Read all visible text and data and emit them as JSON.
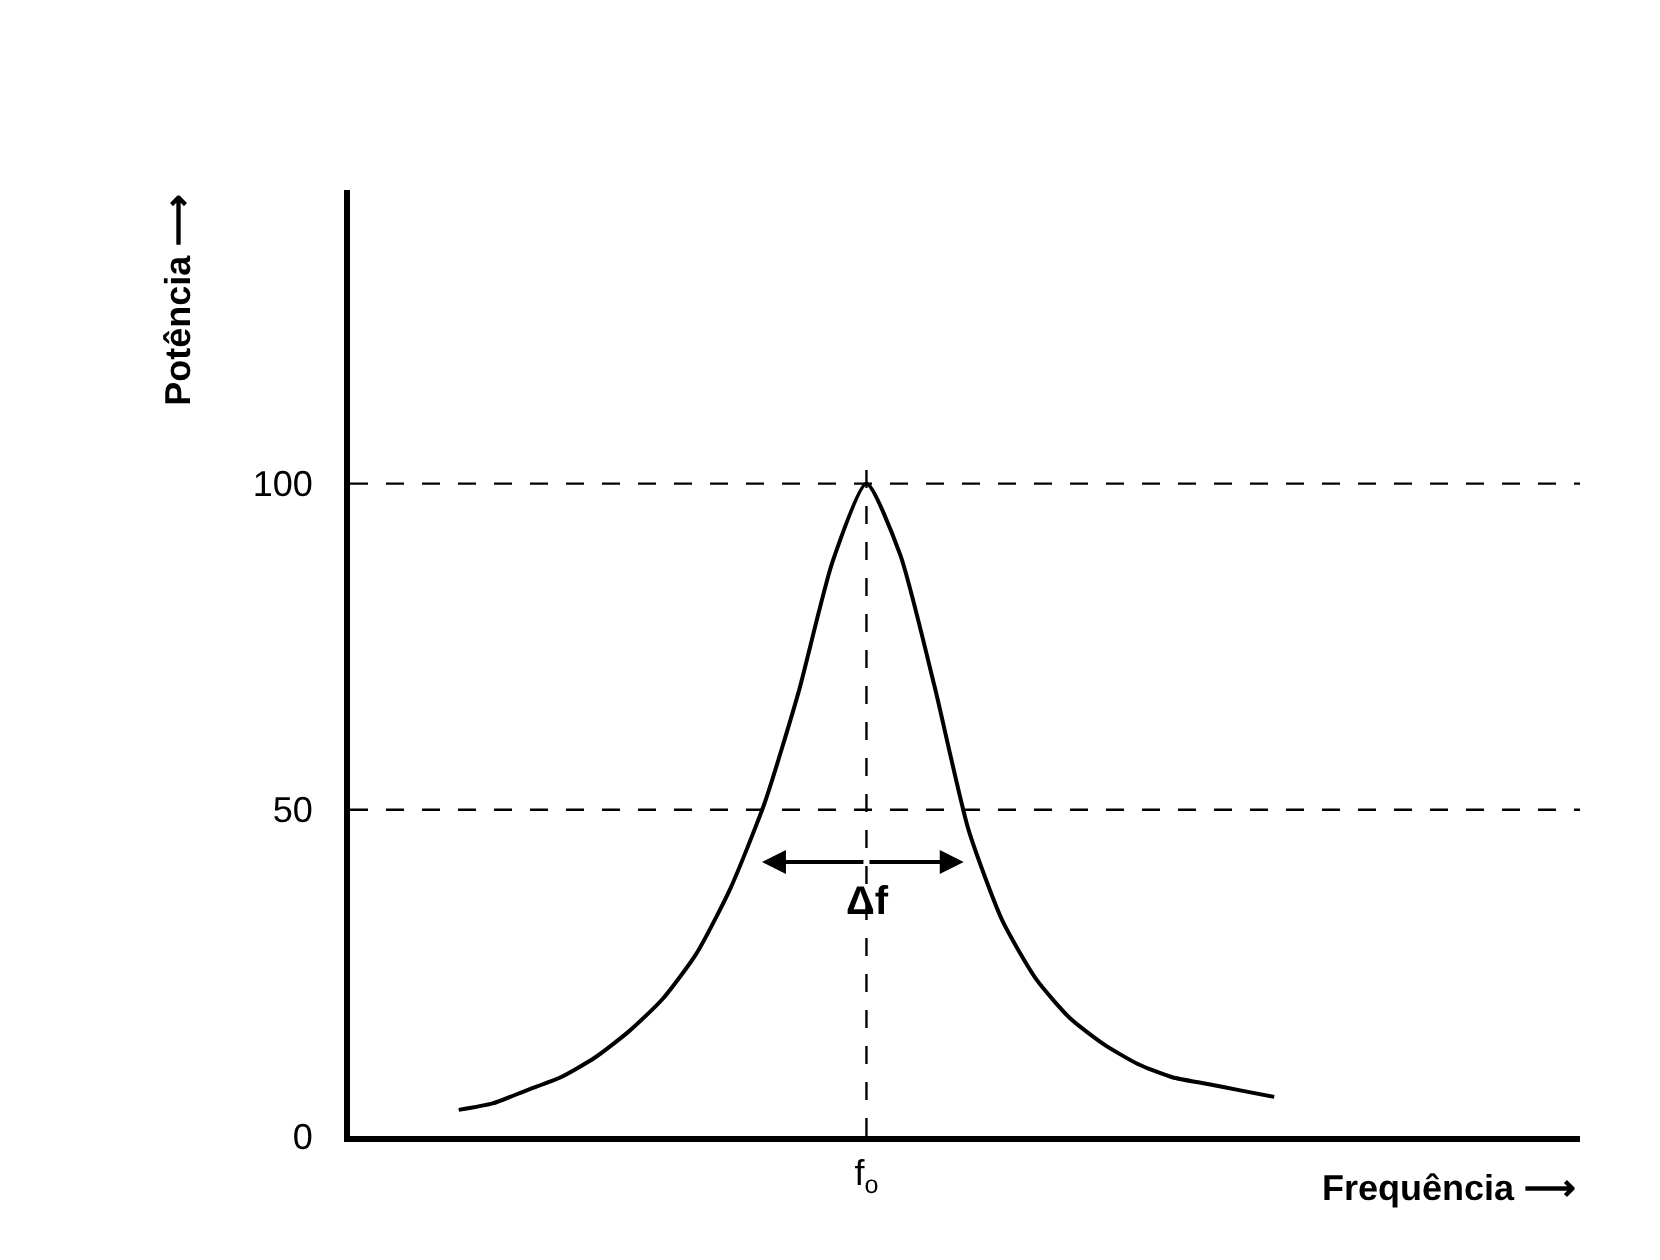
{
  "chart_data": {
    "type": "line",
    "xlabel": "Frequência ⟶",
    "ylabel": "Potência ⟶",
    "categories": [
      null,
      null,
      null,
      null,
      null,
      null,
      null,
      null,
      null,
      null,
      null,
      null,
      "f$_{o}$",
      null,
      null,
      null,
      null,
      null,
      null,
      null,
      null,
      null,
      null,
      null,
      null
    ],
    "series": [
      {
        "color": "#000000",
        "values": [
          4,
          5,
          7,
          9,
          12,
          16,
          21,
          28,
          38,
          51,
          68,
          88,
          100,
          89,
          69,
          47,
          33,
          24,
          18,
          14,
          11,
          9,
          8,
          7,
          6
        ]
      }
    ],
    "ylim": [
      0,
      145
    ],
    "yticks": [
      0,
      50,
      100
    ],
    "grid": false,
    "marker": "none",
    "line_style": "solid",
    "ref_lines": [
      {
        "axis": "y",
        "value": 100,
        "line_style": "dashed",
        "color": "#000000"
      },
      {
        "axis": "y",
        "value": 50,
        "line_style": "dashed",
        "color": "#000000"
      },
      {
        "axis": "x",
        "value": "f$_{o}$",
        "line_style": "dashed",
        "color": "#000000"
      }
    ],
    "annotations": [
      {
        "text": "Δf",
        "x": "f$_{o}$",
        "y": 36
      }
    ]
  }
}
